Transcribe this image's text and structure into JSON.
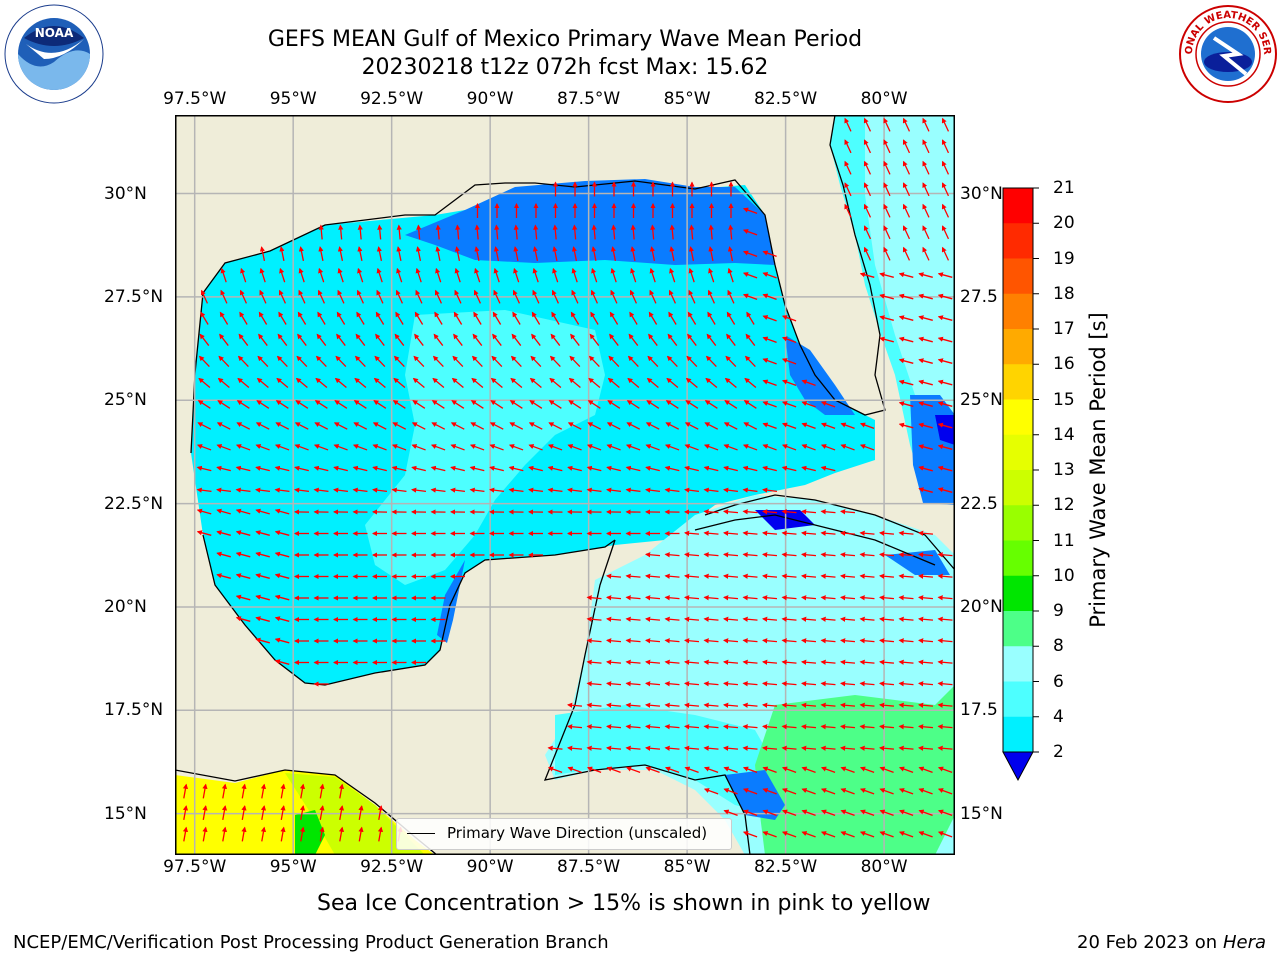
{
  "header": {
    "title_line1": "GEFS MEAN Gulf of Mexico Primary Wave Mean Period",
    "title_line2": "20230218 t12z 072h fcst   Max: 15.62"
  },
  "axes": {
    "lon_labels": [
      "97.5°W",
      "95°W",
      "92.5°W",
      "90°W",
      "87.5°W",
      "85°W",
      "82.5°W",
      "80°W"
    ],
    "lon_values": [
      -97.5,
      -95,
      -92.5,
      -90,
      -87.5,
      -85,
      -82.5,
      -80
    ],
    "lat_labels": [
      "30°N",
      "27.5°N",
      "25°N",
      "22.5°N",
      "20°N",
      "17.5°N",
      "15°N"
    ],
    "lat_values": [
      30,
      27.5,
      25,
      22.5,
      20,
      17.5,
      15
    ],
    "right_lat_labels": [
      "30°N",
      "27.5",
      "25°N",
      "22.5",
      "20°N",
      "17.5",
      "15°N"
    ],
    "extent": {
      "lon_min": -98,
      "lon_max": -78.2,
      "lat_min": 14,
      "lat_max": 31.9
    },
    "grid": true
  },
  "colorbar": {
    "label": "Primary Wave Mean Period [s]",
    "ticks": [
      "21",
      "20",
      "19",
      "18",
      "17",
      "16",
      "15",
      "14",
      "13",
      "12",
      "11",
      "10",
      "9",
      "8",
      "6",
      "4",
      "2"
    ],
    "colors": [
      "#ff0000",
      "#ff2a00",
      "#ff5500",
      "#ff8000",
      "#ffaa00",
      "#ffd400",
      "#ffff00",
      "#e6ff00",
      "#ccff00",
      "#99ff00",
      "#66ff00",
      "#00e600",
      "#4dff88",
      "#99ffff",
      "#4dffff",
      "#00f0ff",
      "#0a7cff"
    ],
    "extend_color": "#0000ee",
    "extend": "min"
  },
  "legend": {
    "label": "Primary Wave Direction (unscaled)"
  },
  "footer": {
    "note": "Sea Ice Concentration > 15% is shown in pink to yellow",
    "credit": "NCEP/EMC/Verification Post Processing Product Generation Branch",
    "date": "20 Feb 2023 on",
    "host": "Hera"
  },
  "logos": {
    "left": "NOAA",
    "right_text": "NATIONAL WEATHER SERVICE"
  },
  "colors": {
    "land": "#efedd9",
    "grid": "#b5b5b5",
    "arrow": "#ff0000"
  }
}
